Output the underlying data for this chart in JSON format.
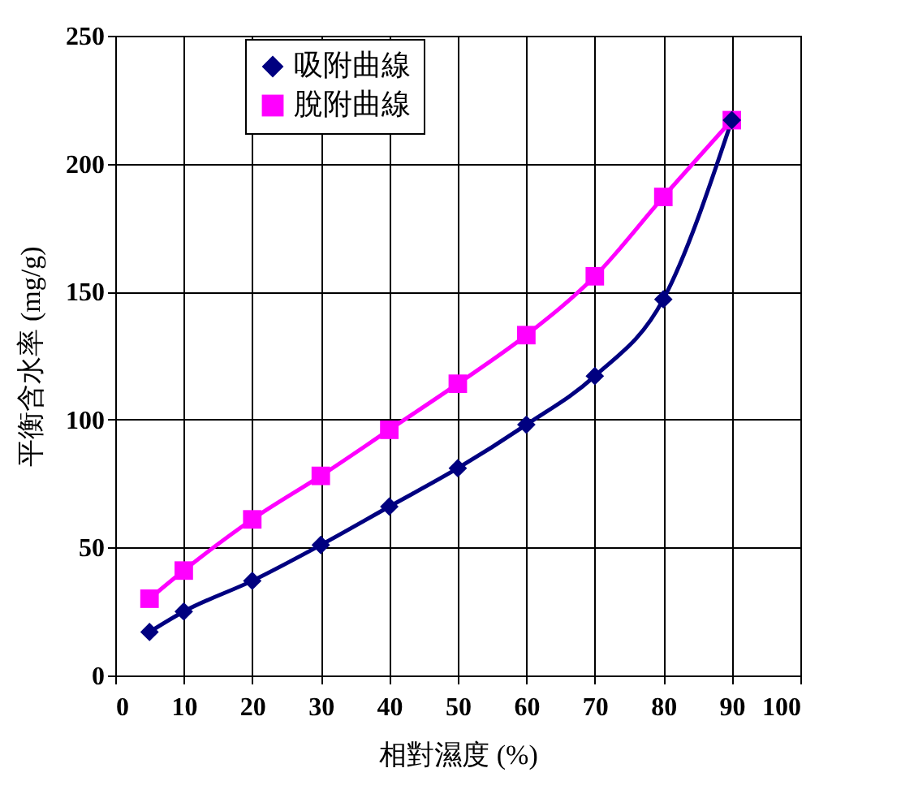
{
  "chart_data": {
    "type": "line",
    "xlabel": "相對濕度 (%)",
    "ylabel": "平衡含水率 (mg/g)",
    "x": [
      5,
      10,
      20,
      30,
      40,
      50,
      60,
      70,
      80,
      90
    ],
    "series": [
      {
        "name": "吸附曲線",
        "color": "#000080",
        "marker": "diamond",
        "values": [
          17,
          25,
          37,
          51,
          66,
          81,
          98,
          117,
          147,
          217
        ]
      },
      {
        "name": "脫附曲線",
        "color": "#ff00ff",
        "marker": "square",
        "values": [
          30,
          41,
          61,
          78,
          96,
          114,
          133,
          156,
          187,
          217
        ]
      }
    ],
    "xlim": [
      0,
      100
    ],
    "xticks": [
      0,
      10,
      20,
      30,
      40,
      50,
      60,
      70,
      80,
      90,
      100
    ],
    "ylim": [
      0,
      250
    ],
    "yticks": [
      0,
      50,
      100,
      150,
      200,
      250
    ],
    "grid": true,
    "legend": "top left",
    "line_style": "solid"
  }
}
